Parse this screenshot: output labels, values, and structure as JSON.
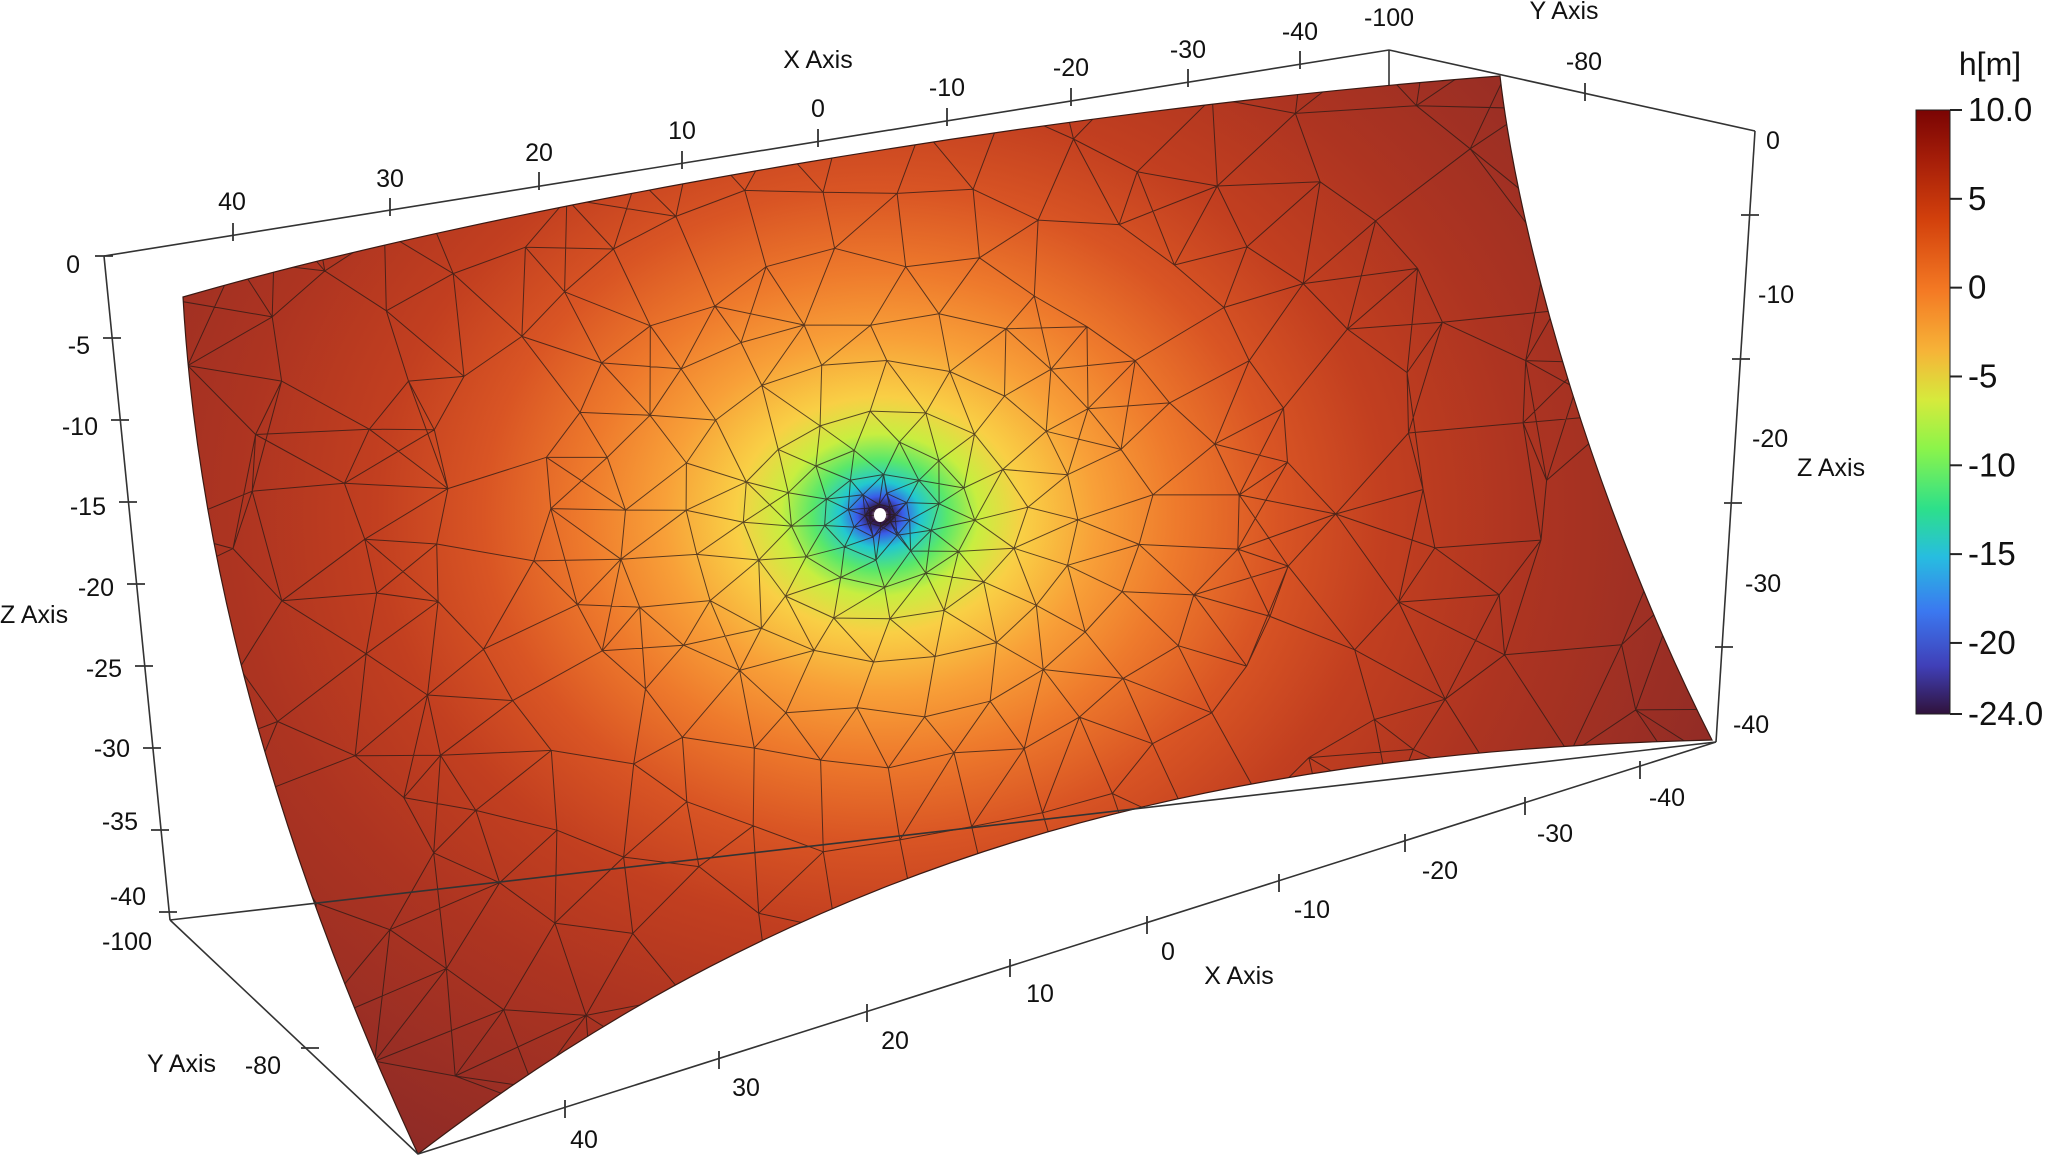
{
  "chart_data": {
    "type": "surface3d",
    "variable_label": "h[m]",
    "axes": {
      "x": {
        "title": "X Axis",
        "top_ticks": [
          "40",
          "30",
          "20",
          "10",
          "0",
          "-10",
          "-20",
          "-30",
          "-40"
        ],
        "bottom_ticks": [
          "40",
          "30",
          "20",
          "10",
          "0",
          "-10",
          "-20",
          "-30",
          "-40"
        ]
      },
      "y": {
        "title": "Y Axis",
        "ticks": [
          "-100",
          "-80"
        ]
      },
      "z": {
        "title": "Z Axis",
        "left_ticks": [
          "0",
          "-5",
          "-10",
          "-15",
          "-20",
          "-25",
          "-30",
          "-35",
          "-40"
        ],
        "right_ticks": [
          "0",
          "-10",
          "-20",
          "-30",
          "-40"
        ]
      }
    },
    "colorbar": {
      "min": -24.0,
      "max": 10.0,
      "ticks": [
        "10.0",
        "5",
        "0",
        "-5",
        "-10",
        "-15",
        "-20",
        "-24.0"
      ],
      "colors": [
        "#7a0403",
        "#b52a0a",
        "#e0500e",
        "#f68b2b",
        "#f2c23c",
        "#a2f63e",
        "#2cd37a",
        "#29b8de",
        "#3a6ff0",
        "#3a2d95",
        "#30123b"
      ]
    },
    "field": {
      "description_free": true,
      "center_value": -24.0,
      "far_value": 10.0
    }
  }
}
